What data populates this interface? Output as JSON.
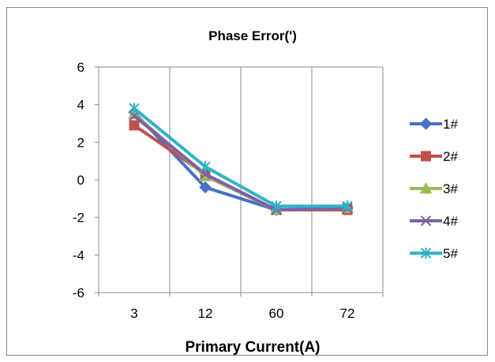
{
  "chart_data": {
    "type": "line",
    "title": "Phase Error(')",
    "xlabel": "Primary Current(A)",
    "ylabel": "",
    "categories": [
      "3",
      "12",
      "60",
      "72"
    ],
    "ylim": [
      -6,
      6
    ],
    "yticks": [
      6,
      4,
      2,
      0,
      -2,
      -4,
      -6
    ],
    "grid": "vertical",
    "legend_position": "right",
    "series": [
      {
        "name": "1#",
        "color": "#4572C4",
        "marker": "diamond",
        "values": [
          3.6,
          -0.4,
          -1.6,
          -1.5
        ]
      },
      {
        "name": "2#",
        "color": "#C0504D",
        "marker": "square",
        "values": [
          2.9,
          0.3,
          -1.6,
          -1.6
        ]
      },
      {
        "name": "3#",
        "color": "#9BBB59",
        "marker": "triangle",
        "values": [
          3.5,
          0.2,
          -1.6,
          -1.5
        ]
      },
      {
        "name": "4#",
        "color": "#7F5FA6",
        "marker": "x",
        "values": [
          3.4,
          0.3,
          -1.6,
          -1.5
        ]
      },
      {
        "name": "5#",
        "color": "#2FB3C8",
        "marker": "star",
        "values": [
          3.8,
          0.7,
          -1.4,
          -1.4
        ]
      }
    ]
  }
}
